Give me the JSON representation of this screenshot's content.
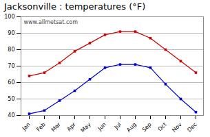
{
  "chart_data": {
    "type": "line",
    "title": "Jacksonville : temperatures (°F)",
    "categories": [
      "Jan",
      "Feb",
      "Mar",
      "Apr",
      "May",
      "Jun",
      "Jul",
      "Aug",
      "Sep",
      "Oct",
      "Nov",
      "Dec"
    ],
    "series": [
      {
        "color": "#cc0000",
        "values": [
          64,
          66,
          72,
          79,
          84,
          89,
          91,
          91,
          87,
          80,
          73,
          66
        ]
      },
      {
        "color": "#0000cc",
        "values": [
          41,
          43,
          49,
          55,
          62,
          69,
          71,
          71,
          69,
          59,
          50,
          42
        ]
      }
    ],
    "ylim": [
      40,
      100
    ],
    "yticks": [
      40,
      50,
      60,
      70,
      80,
      90,
      100
    ],
    "grid": true,
    "marker": "square",
    "line_style": "solid",
    "annotations": [
      "www.allmetsat.com"
    ]
  }
}
